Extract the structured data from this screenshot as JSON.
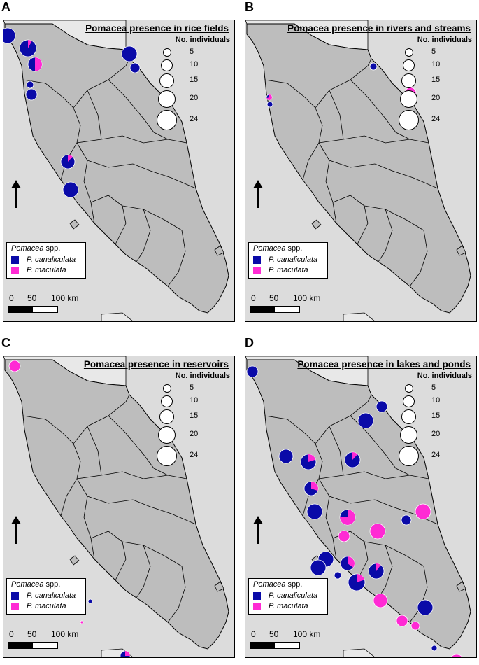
{
  "colors": {
    "canaliculata": "#0a0aa8",
    "maculata": "#ff2ad4",
    "land": "#bdbdbd",
    "sea": "#dcdcdc",
    "neighbor": "#e8e8e8",
    "border": "#000000"
  },
  "legend": {
    "size_header": "No. individuals",
    "sizes": [
      "5",
      "10",
      "15",
      "20",
      "24"
    ],
    "species_header_genus": "Pomacea",
    "species_header_suffix": " spp.",
    "species": [
      "P. canaliculata",
      "P. maculata"
    ]
  },
  "scale": {
    "n0": "0",
    "n50": "50",
    "n100": "100 km"
  },
  "panels": [
    {
      "letter": "A",
      "title": "Pomacea presence in rice fields"
    },
    {
      "letter": "B",
      "title": "Pomacea presence in rivers and streams"
    },
    {
      "letter": "C",
      "title": "Pomacea presence in reservoirs"
    },
    {
      "letter": "D",
      "title": "Pomacea presence in lakes and ponds"
    }
  ],
  "icons": {
    "north": "north-arrow-icon"
  }
}
